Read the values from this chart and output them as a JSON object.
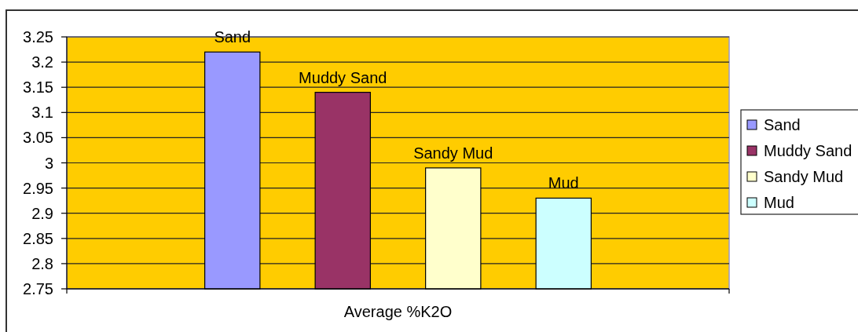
{
  "chart_data": {
    "type": "bar",
    "categories": [
      "Average %K2O"
    ],
    "series": [
      {
        "name": "Sand",
        "color": "#9999ff",
        "values": [
          3.22
        ],
        "value_labels": [
          "Sand"
        ]
      },
      {
        "name": "Muddy Sand",
        "color": "#993366",
        "values": [
          3.14
        ],
        "value_labels": [
          "Muddy Sand"
        ]
      },
      {
        "name": "Sandy Mud",
        "color": "#ffffcc",
        "values": [
          2.99
        ],
        "value_labels": [
          "Sandy Mud"
        ]
      },
      {
        "name": "Mud",
        "color": "#ccffff",
        "values": [
          2.93
        ],
        "value_labels": [
          "Mud"
        ]
      }
    ],
    "ylim": [
      2.75,
      3.25
    ],
    "yticks": [
      2.75,
      2.8,
      2.85,
      2.9,
      2.95,
      3,
      3.05,
      3.1,
      3.15,
      3.2,
      3.25
    ],
    "grid": "y",
    "legend": "right"
  }
}
